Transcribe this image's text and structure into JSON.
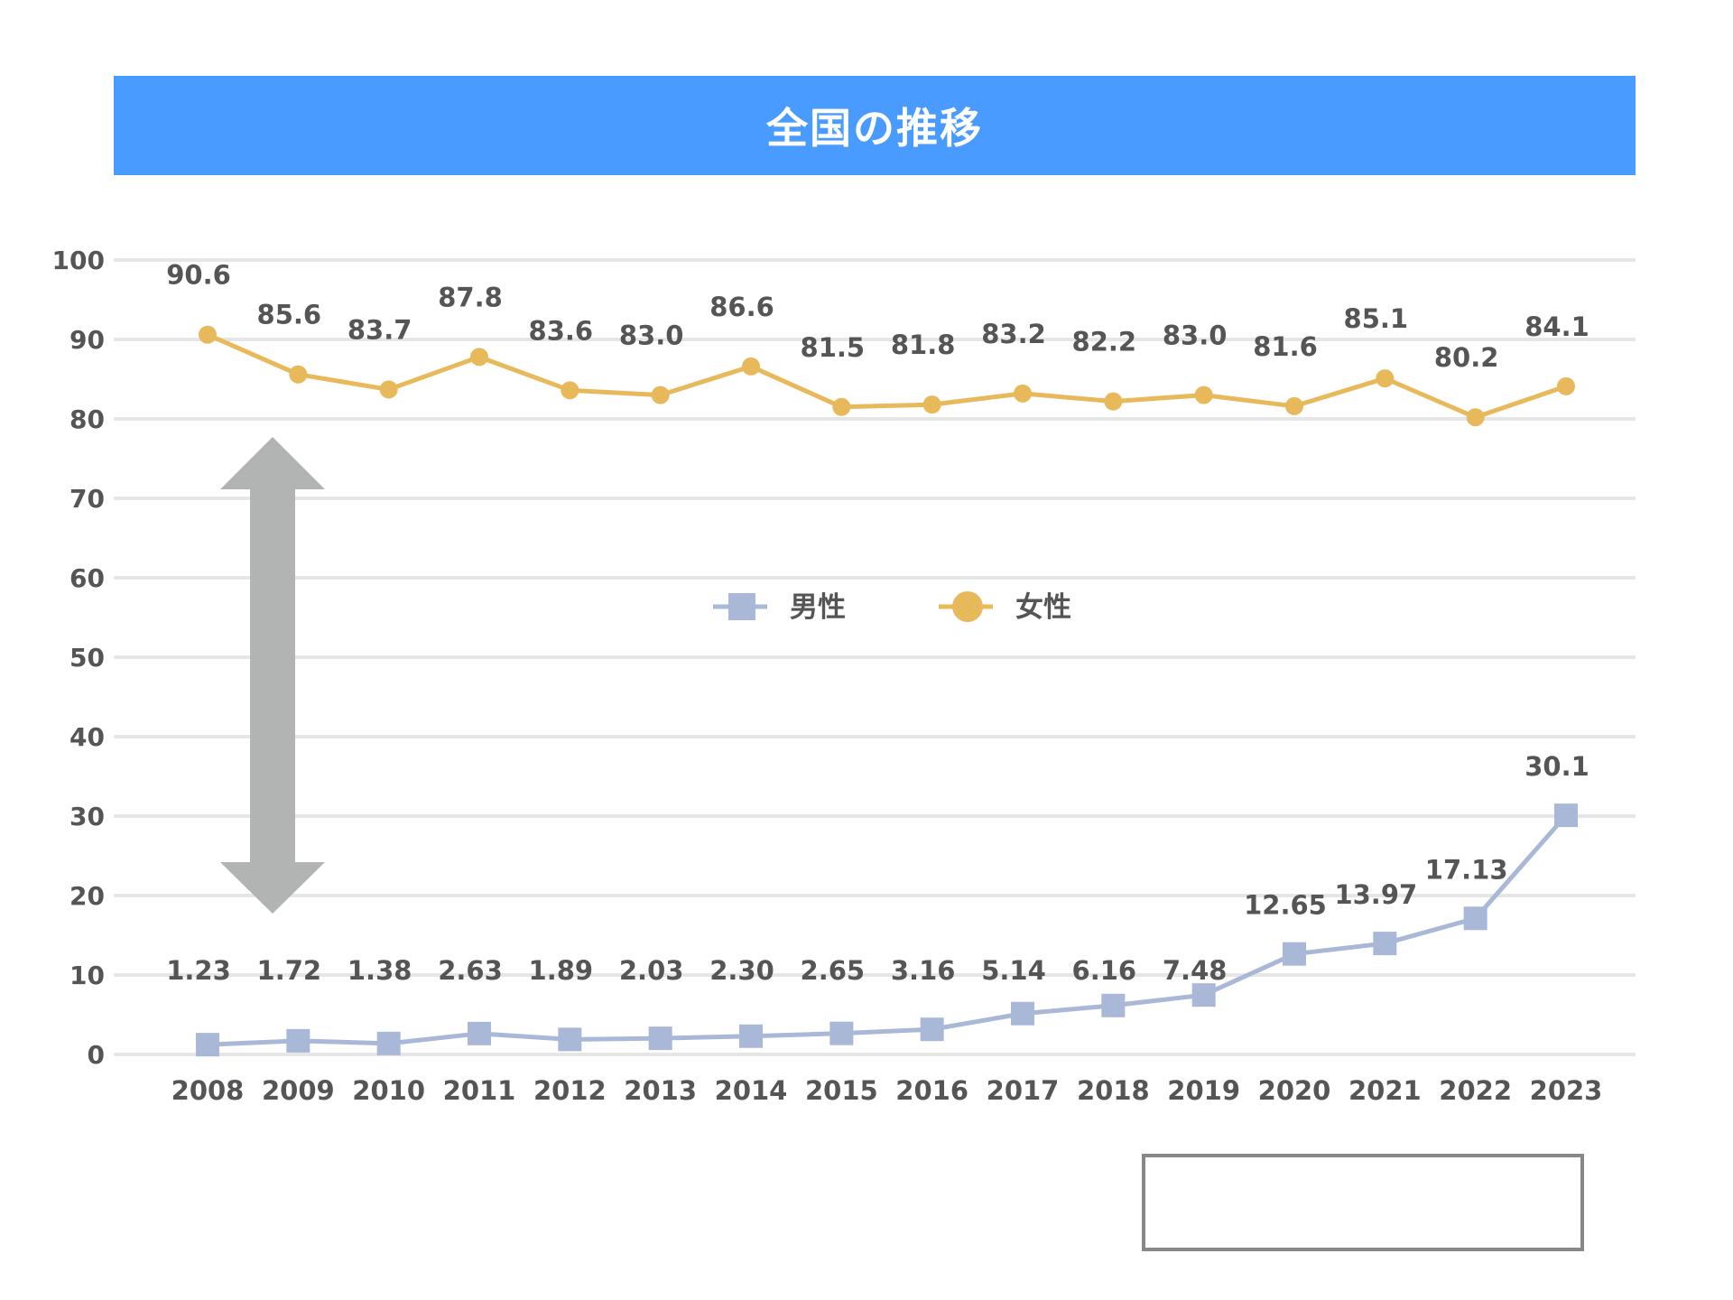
{
  "title": "全国の推移",
  "chart_data": {
    "type": "line",
    "title": "全国の推移",
    "x": [
      "2008",
      "2009",
      "2010",
      "2011",
      "2012",
      "2013",
      "2014",
      "2015",
      "2016",
      "2017",
      "2018",
      "2019",
      "2020",
      "2021",
      "2022",
      "2023"
    ],
    "yticks": [
      "0",
      "10",
      "20",
      "30",
      "40",
      "50",
      "60",
      "70",
      "80",
      "90",
      "100"
    ],
    "ylim": [
      0,
      100
    ],
    "grid": true,
    "legend_position": "center and bottom-right",
    "series": [
      {
        "name": "男性",
        "color": "#a9b8d6",
        "marker": "square",
        "values": [
          1.23,
          1.72,
          1.38,
          2.63,
          1.89,
          2.03,
          2.3,
          2.65,
          3.16,
          5.14,
          6.16,
          7.48,
          12.65,
          13.97,
          17.13,
          30.1
        ],
        "labels": [
          "1.23",
          "1.72",
          "1.38",
          "2.63",
          "1.89",
          "2.03",
          "2.30",
          "2.65",
          "3.16",
          "5.14",
          "6.16",
          "7.48",
          "12.65",
          "13.97",
          "17.13",
          "30.1"
        ]
      },
      {
        "name": "女性",
        "color": "#e8b95a",
        "marker": "circle",
        "values": [
          90.6,
          85.6,
          83.7,
          87.8,
          83.6,
          83.0,
          86.6,
          81.5,
          81.8,
          83.2,
          82.2,
          83.0,
          81.6,
          85.1,
          80.2,
          84.1
        ],
        "labels": [
          "90.6",
          "85.6",
          "83.7",
          "87.8",
          "83.6",
          "83.0",
          "86.6",
          "81.5",
          "81.8",
          "83.2",
          "82.2",
          "83.0",
          "81.6",
          "85.1",
          "80.2",
          "84.1"
        ]
      }
    ],
    "annotation": "gray-double-arrow"
  }
}
